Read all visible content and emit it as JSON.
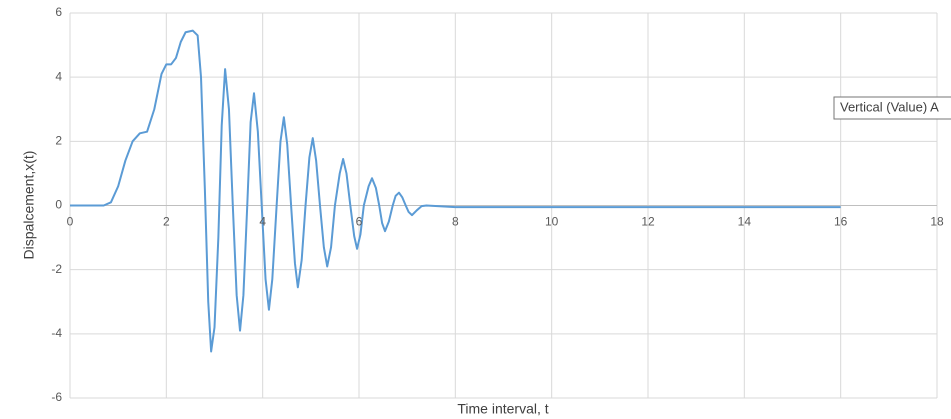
{
  "chart_data": {
    "type": "line",
    "x_label": "Time interval, t",
    "y_label": "Dispalcement,x(t)",
    "tooltip": "Vertical (Value) A",
    "xlim": [
      0,
      18
    ],
    "xticks": [
      0,
      2,
      4,
      6,
      8,
      10,
      12,
      14,
      16,
      18
    ],
    "ylim": [
      -6,
      6
    ],
    "yticks": [
      -6,
      -4,
      -2,
      0,
      2,
      4,
      6
    ],
    "grid": true,
    "series": [
      {
        "color": "#5b9bd5",
        "x": [
          0,
          0.7,
          0.85,
          1.0,
          1.15,
          1.3,
          1.45,
          1.6,
          1.75,
          1.9,
          2.0,
          2.1,
          2.2,
          2.3,
          2.4,
          2.55,
          2.65,
          2.72,
          2.8,
          2.87,
          2.93,
          3.0,
          3.08,
          3.15,
          3.22,
          3.3,
          3.38,
          3.46,
          3.53,
          3.6,
          3.68,
          3.75,
          3.82,
          3.9,
          3.98,
          4.06,
          4.13,
          4.2,
          4.29,
          4.37,
          4.44,
          4.51,
          4.59,
          4.67,
          4.73,
          4.81,
          4.89,
          4.97,
          5.04,
          5.11,
          5.19,
          5.27,
          5.34,
          5.42,
          5.5,
          5.6,
          5.67,
          5.74,
          5.82,
          5.9,
          5.96,
          6.03,
          6.1,
          6.2,
          6.27,
          6.35,
          6.42,
          6.48,
          6.54,
          6.62,
          6.7,
          6.76,
          6.83,
          6.9,
          6.97,
          7.03,
          7.1,
          7.2,
          7.3,
          7.4,
          8,
          10,
          12,
          14,
          16
        ],
        "values": [
          0,
          0,
          0.1,
          0.6,
          1.4,
          2.0,
          2.25,
          2.3,
          3.0,
          4.1,
          4.4,
          4.4,
          4.6,
          5.1,
          5.4,
          5.45,
          5.3,
          4.0,
          0.5,
          -3.0,
          -4.55,
          -3.8,
          -1.0,
          2.5,
          4.25,
          3.0,
          0,
          -2.8,
          -3.9,
          -2.8,
          0,
          2.6,
          3.5,
          2.3,
          0,
          -2.3,
          -3.25,
          -2.3,
          0,
          2.0,
          2.75,
          1.9,
          0,
          -1.8,
          -2.55,
          -1.7,
          0,
          1.5,
          2.1,
          1.4,
          0,
          -1.3,
          -1.9,
          -1.3,
          0,
          1.0,
          1.45,
          1.0,
          0,
          -0.95,
          -1.35,
          -0.9,
          0,
          0.6,
          0.85,
          0.55,
          0,
          -0.55,
          -0.8,
          -0.5,
          0,
          0.3,
          0.4,
          0.25,
          0,
          -0.2,
          -0.3,
          -0.15,
          -0.02,
          0,
          -0.05,
          -0.05,
          -0.05,
          -0.05,
          -0.05
        ]
      }
    ]
  }
}
